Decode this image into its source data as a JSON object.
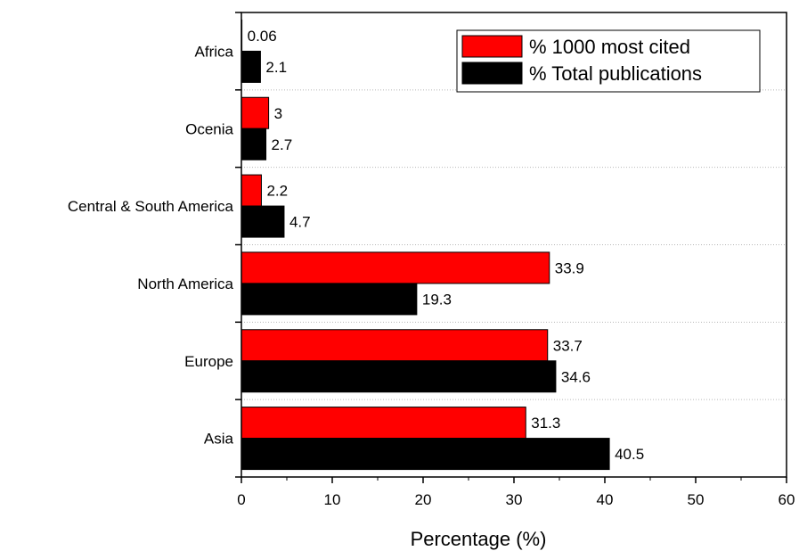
{
  "chart_data": {
    "type": "bar",
    "orientation": "horizontal",
    "categories": [
      "Asia",
      "Europe",
      "North America",
      "Central & South America",
      "Ocenia",
      "Africa"
    ],
    "series": [
      {
        "name": "% 1000 most cited",
        "color": "#ff0000",
        "values": [
          31.3,
          33.7,
          33.9,
          2.2,
          3,
          0.06
        ],
        "labels": [
          "31.3",
          "33.7",
          "33.9",
          "2.2",
          "3",
          "0.06"
        ]
      },
      {
        "name": "% Total publications",
        "color": "#000000",
        "values": [
          40.5,
          34.6,
          19.3,
          4.7,
          2.7,
          2.1
        ],
        "labels": [
          "40.5",
          "34.6",
          "19.3",
          "4.7",
          "2.7",
          "2.1"
        ]
      }
    ],
    "xlabel": "Percentage (%)",
    "ylabel": "",
    "xlim": [
      0,
      60
    ],
    "xticks": [
      0,
      10,
      20,
      30,
      40,
      50,
      60
    ],
    "grid": "horizontal dotted between categories",
    "legend_position": "top-right"
  }
}
